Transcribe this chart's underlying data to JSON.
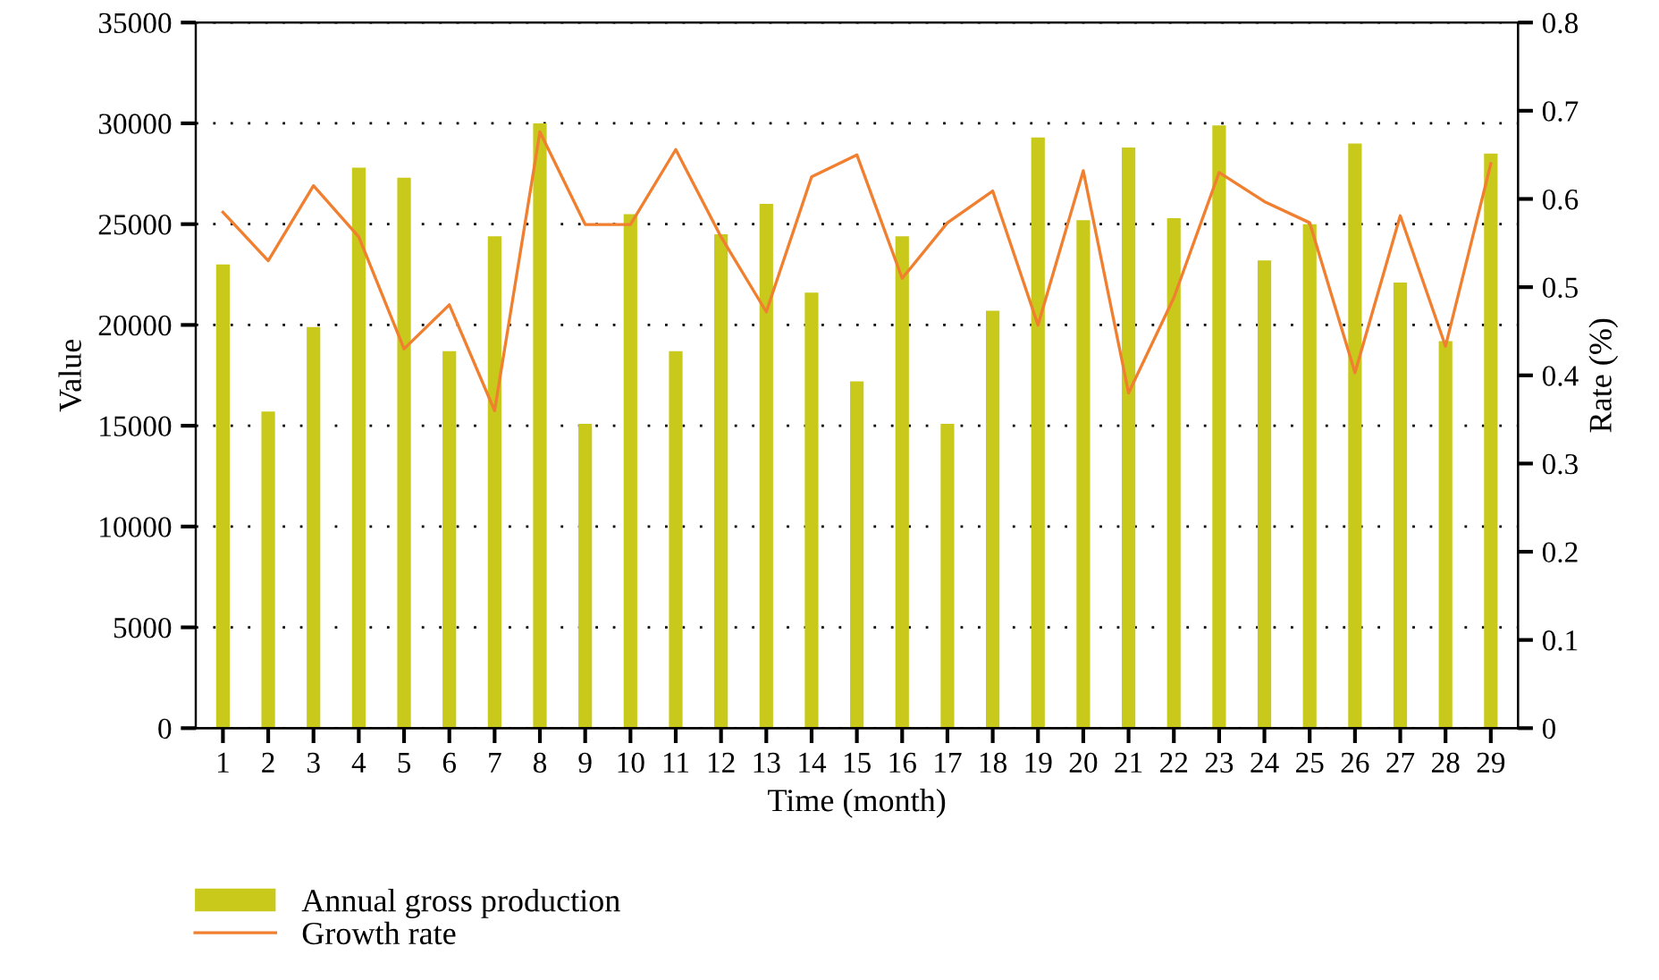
{
  "chart_data": {
    "type": "bar",
    "xlabel": "Time (month)",
    "ylabel": "Value",
    "y2label": "Rate (%)",
    "categories": [
      "1",
      "2",
      "3",
      "4",
      "5",
      "6",
      "7",
      "8",
      "9",
      "10",
      "11",
      "12",
      "13",
      "14",
      "15",
      "16",
      "17",
      "18",
      "19",
      "20",
      "21",
      "22",
      "23",
      "24",
      "25",
      "26",
      "27",
      "28",
      "29"
    ],
    "series": [
      {
        "name": "Annual gross production",
        "color": "#c9c91c",
        "values": [
          23000,
          15700,
          19900,
          27800,
          27300,
          18700,
          24400,
          30000,
          15100,
          25500,
          18700,
          24500,
          26000,
          21600,
          17200,
          24400,
          15100,
          20700,
          29300,
          25200,
          28800,
          25300,
          29900,
          23200,
          25000,
          29000,
          22100,
          19200,
          28500
        ]
      },
      {
        "name": "Growth rate",
        "type": "line",
        "axis": "y2",
        "color": "#f07f30",
        "values": [
          0.585,
          0.53,
          0.615,
          0.557,
          0.43,
          0.48,
          0.36,
          0.676,
          0.571,
          0.571,
          0.656,
          0.557,
          0.472,
          0.625,
          0.65,
          0.51,
          0.573,
          0.609,
          0.457,
          0.632,
          0.38,
          0.488,
          0.63,
          0.597,
          0.573,
          0.403,
          0.581,
          0.433,
          0.64
        ]
      }
    ],
    "ylim": [
      0,
      35000
    ],
    "yticks": [
      0,
      5000,
      10000,
      15000,
      20000,
      25000,
      30000,
      35000
    ],
    "y2lim": [
      0,
      0.8
    ],
    "y2ticks": [
      0,
      0.1,
      0.2,
      0.3,
      0.4,
      0.5,
      0.6,
      0.7,
      0.8
    ],
    "grid": "y",
    "legend": "bottom left",
    "line_style": "solid",
    "marker": "none"
  }
}
